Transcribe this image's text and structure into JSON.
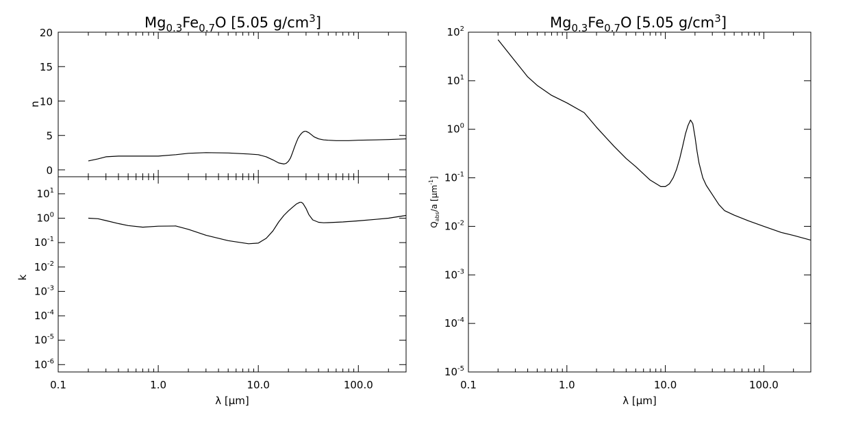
{
  "chart_data": [
    {
      "id": "n_panel",
      "type": "line",
      "title": {
        "prefix": "Mg",
        "sub1": "0.3",
        "mid": "Fe",
        "sub2": "0.7",
        "suffix": "O [5.05 g/cm",
        "sup": "3",
        "end": "]"
      },
      "xlabel": {
        "lambda": "λ",
        "bracket_open": " [",
        "mu": "μ",
        "unit": "m]"
      },
      "ylabel": "n",
      "xscale": "log",
      "xlim": [
        0.1,
        300
      ],
      "ylim": [
        -1,
        20
      ],
      "x_tick_labels": [],
      "y_ticks": [
        0,
        5,
        10,
        15,
        20
      ],
      "y_tick_labels": [
        "0",
        "5",
        "10",
        "15",
        "20"
      ],
      "series": [
        {
          "x": [
            0.2,
            0.25,
            0.3,
            0.4,
            0.5,
            0.7,
            1.0,
            1.5,
            2.0,
            3.0,
            5.0,
            8.0,
            10.0,
            12.0,
            14.0,
            16.0,
            18.0,
            19.0,
            20.0,
            21.0,
            22.0,
            23.0,
            24.0,
            25.0,
            26.0,
            27.0,
            28.0,
            29.0,
            30.0,
            32.0,
            34.0,
            36.0,
            40.0,
            45.0,
            50.0,
            60.0,
            80.0,
            100.0,
            150.0,
            200.0,
            300.0
          ],
          "y": [
            1.3,
            1.6,
            1.9,
            2.0,
            2.0,
            2.0,
            2.0,
            2.2,
            2.4,
            2.5,
            2.45,
            2.3,
            2.2,
            1.9,
            1.45,
            1.0,
            0.85,
            0.95,
            1.25,
            1.75,
            2.5,
            3.3,
            4.0,
            4.6,
            5.0,
            5.3,
            5.5,
            5.6,
            5.6,
            5.4,
            5.1,
            4.8,
            4.5,
            4.35,
            4.3,
            4.25,
            4.25,
            4.3,
            4.35,
            4.4,
            4.5
          ]
        }
      ]
    },
    {
      "id": "k_panel",
      "type": "line",
      "xlabel": {
        "lambda": "λ",
        "bracket_open": " [",
        "mu": "μ",
        "unit": "m]"
      },
      "ylabel": "k",
      "xscale": "log",
      "yscale": "log",
      "xlim": [
        0.1,
        300
      ],
      "ylim": [
        5e-07,
        50
      ],
      "x_ticks": [
        0.1,
        1,
        10,
        100
      ],
      "x_tick_labels": [
        "0.1",
        "1.0",
        "10.0",
        "100.0"
      ],
      "y_tick_exponents": [
        "-6",
        "-5",
        "-4",
        "-3",
        "-2",
        "-1",
        "0",
        "1"
      ],
      "series": [
        {
          "x": [
            0.2,
            0.25,
            0.3,
            0.4,
            0.5,
            0.7,
            1.0,
            1.5,
            2.0,
            3.0,
            5.0,
            8.0,
            10.0,
            12.0,
            14.0,
            16.0,
            18.0,
            20.0,
            22.0,
            24.0,
            26.0,
            27.0,
            28.0,
            30.0,
            32.0,
            35.0,
            40.0,
            45.0,
            50.0,
            70.0,
            100.0,
            150.0,
            200.0,
            300.0
          ],
          "y": [
            1.0,
            0.95,
            0.8,
            0.6,
            0.5,
            0.43,
            0.47,
            0.48,
            0.35,
            0.2,
            0.12,
            0.09,
            0.095,
            0.15,
            0.3,
            0.7,
            1.3,
            2.0,
            2.8,
            3.8,
            4.5,
            4.5,
            4.0,
            2.5,
            1.4,
            0.85,
            0.68,
            0.65,
            0.66,
            0.7,
            0.78,
            0.9,
            1.0,
            1.3
          ]
        }
      ]
    },
    {
      "id": "qabs_panel",
      "type": "line",
      "title": {
        "prefix": "Mg",
        "sub1": "0.3",
        "mid": "Fe",
        "sub2": "0.7",
        "suffix": "O [5.05 g/cm",
        "sup": "3",
        "end": "]"
      },
      "xlabel": {
        "lambda": "λ",
        "bracket_open": " [",
        "mu": "μ",
        "unit": "m]"
      },
      "ylabel": {
        "q": "Q",
        "sub": "abs",
        "rest": "/a [",
        "mu": "μ",
        "unit": "m",
        "sup": "-1",
        "end": "]"
      },
      "xscale": "log",
      "yscale": "log",
      "xlim": [
        0.1,
        300
      ],
      "ylim": [
        1e-05,
        100
      ],
      "x_ticks": [
        0.1,
        1,
        10,
        100
      ],
      "x_tick_labels": [
        "0.1",
        "1.0",
        "10.0",
        "100.0"
      ],
      "y_tick_exponents": [
        "-5",
        "-4",
        "-3",
        "-2",
        "-1",
        "0",
        "1",
        "2"
      ],
      "series": [
        {
          "x": [
            0.2,
            0.3,
            0.4,
            0.5,
            0.7,
            1.0,
            1.5,
            2.0,
            3.0,
            4.0,
            5.0,
            7.0,
            9.0,
            10.0,
            11.0,
            12.0,
            13.0,
            14.0,
            15.0,
            16.0,
            17.0,
            18.0,
            19.0,
            20.0,
            21.0,
            22.0,
            24.0,
            26.0,
            30.0,
            35.0,
            40.0,
            50.0,
            70.0,
            100.0,
            150.0,
            200.0,
            300.0
          ],
          "y": [
            70,
            25,
            12,
            8,
            5,
            3.5,
            2.2,
            1.1,
            0.45,
            0.25,
            0.17,
            0.09,
            0.066,
            0.066,
            0.075,
            0.1,
            0.15,
            0.25,
            0.45,
            0.8,
            1.2,
            1.55,
            1.3,
            0.7,
            0.35,
            0.2,
            0.1,
            0.07,
            0.045,
            0.028,
            0.021,
            0.017,
            0.013,
            0.01,
            0.0075,
            0.0065,
            0.0052
          ]
        }
      ]
    }
  ]
}
